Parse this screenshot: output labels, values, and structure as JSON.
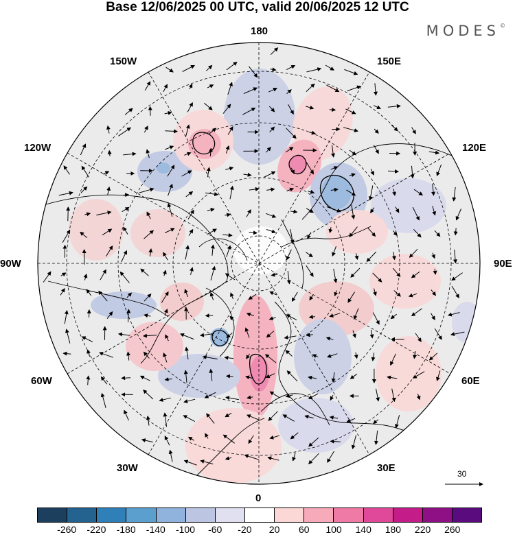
{
  "title": "Base 12/06/2025 00 UTC, valid 20/06/2025 12 UTC",
  "logo_text": "MODES",
  "logo_mark": "©",
  "longitude_labels": {
    "top": "180",
    "bottom": "0",
    "left": "90W",
    "right": "90E",
    "l150w": "150W",
    "l150e": "150E",
    "l120w": "120W",
    "l120e": "120E",
    "l60w": "60W",
    "l60e": "60E",
    "l30w": "30W",
    "l30e": "30E"
  },
  "vector_scale_label": "30",
  "colorbar": {
    "colors": [
      "#1d3f5e",
      "#24628f",
      "#2f7fb8",
      "#5b9fcf",
      "#8fb3dc",
      "#bcc6e3",
      "#e0e0f0",
      "#ffffff",
      "#fbd7d6",
      "#f7aab9",
      "#f07aa6",
      "#e0489a",
      "#c41c88",
      "#8f0f84",
      "#5a0c7e"
    ],
    "tick_labels": [
      "-260",
      "-220",
      "-180",
      "-140",
      "-100",
      "-60",
      "-20",
      "20",
      "60",
      "100",
      "140",
      "180",
      "220",
      "260"
    ]
  },
  "colors": {
    "land_mask": "#ebebeb",
    "coastline": "#000000",
    "graticule": "#000000"
  }
}
